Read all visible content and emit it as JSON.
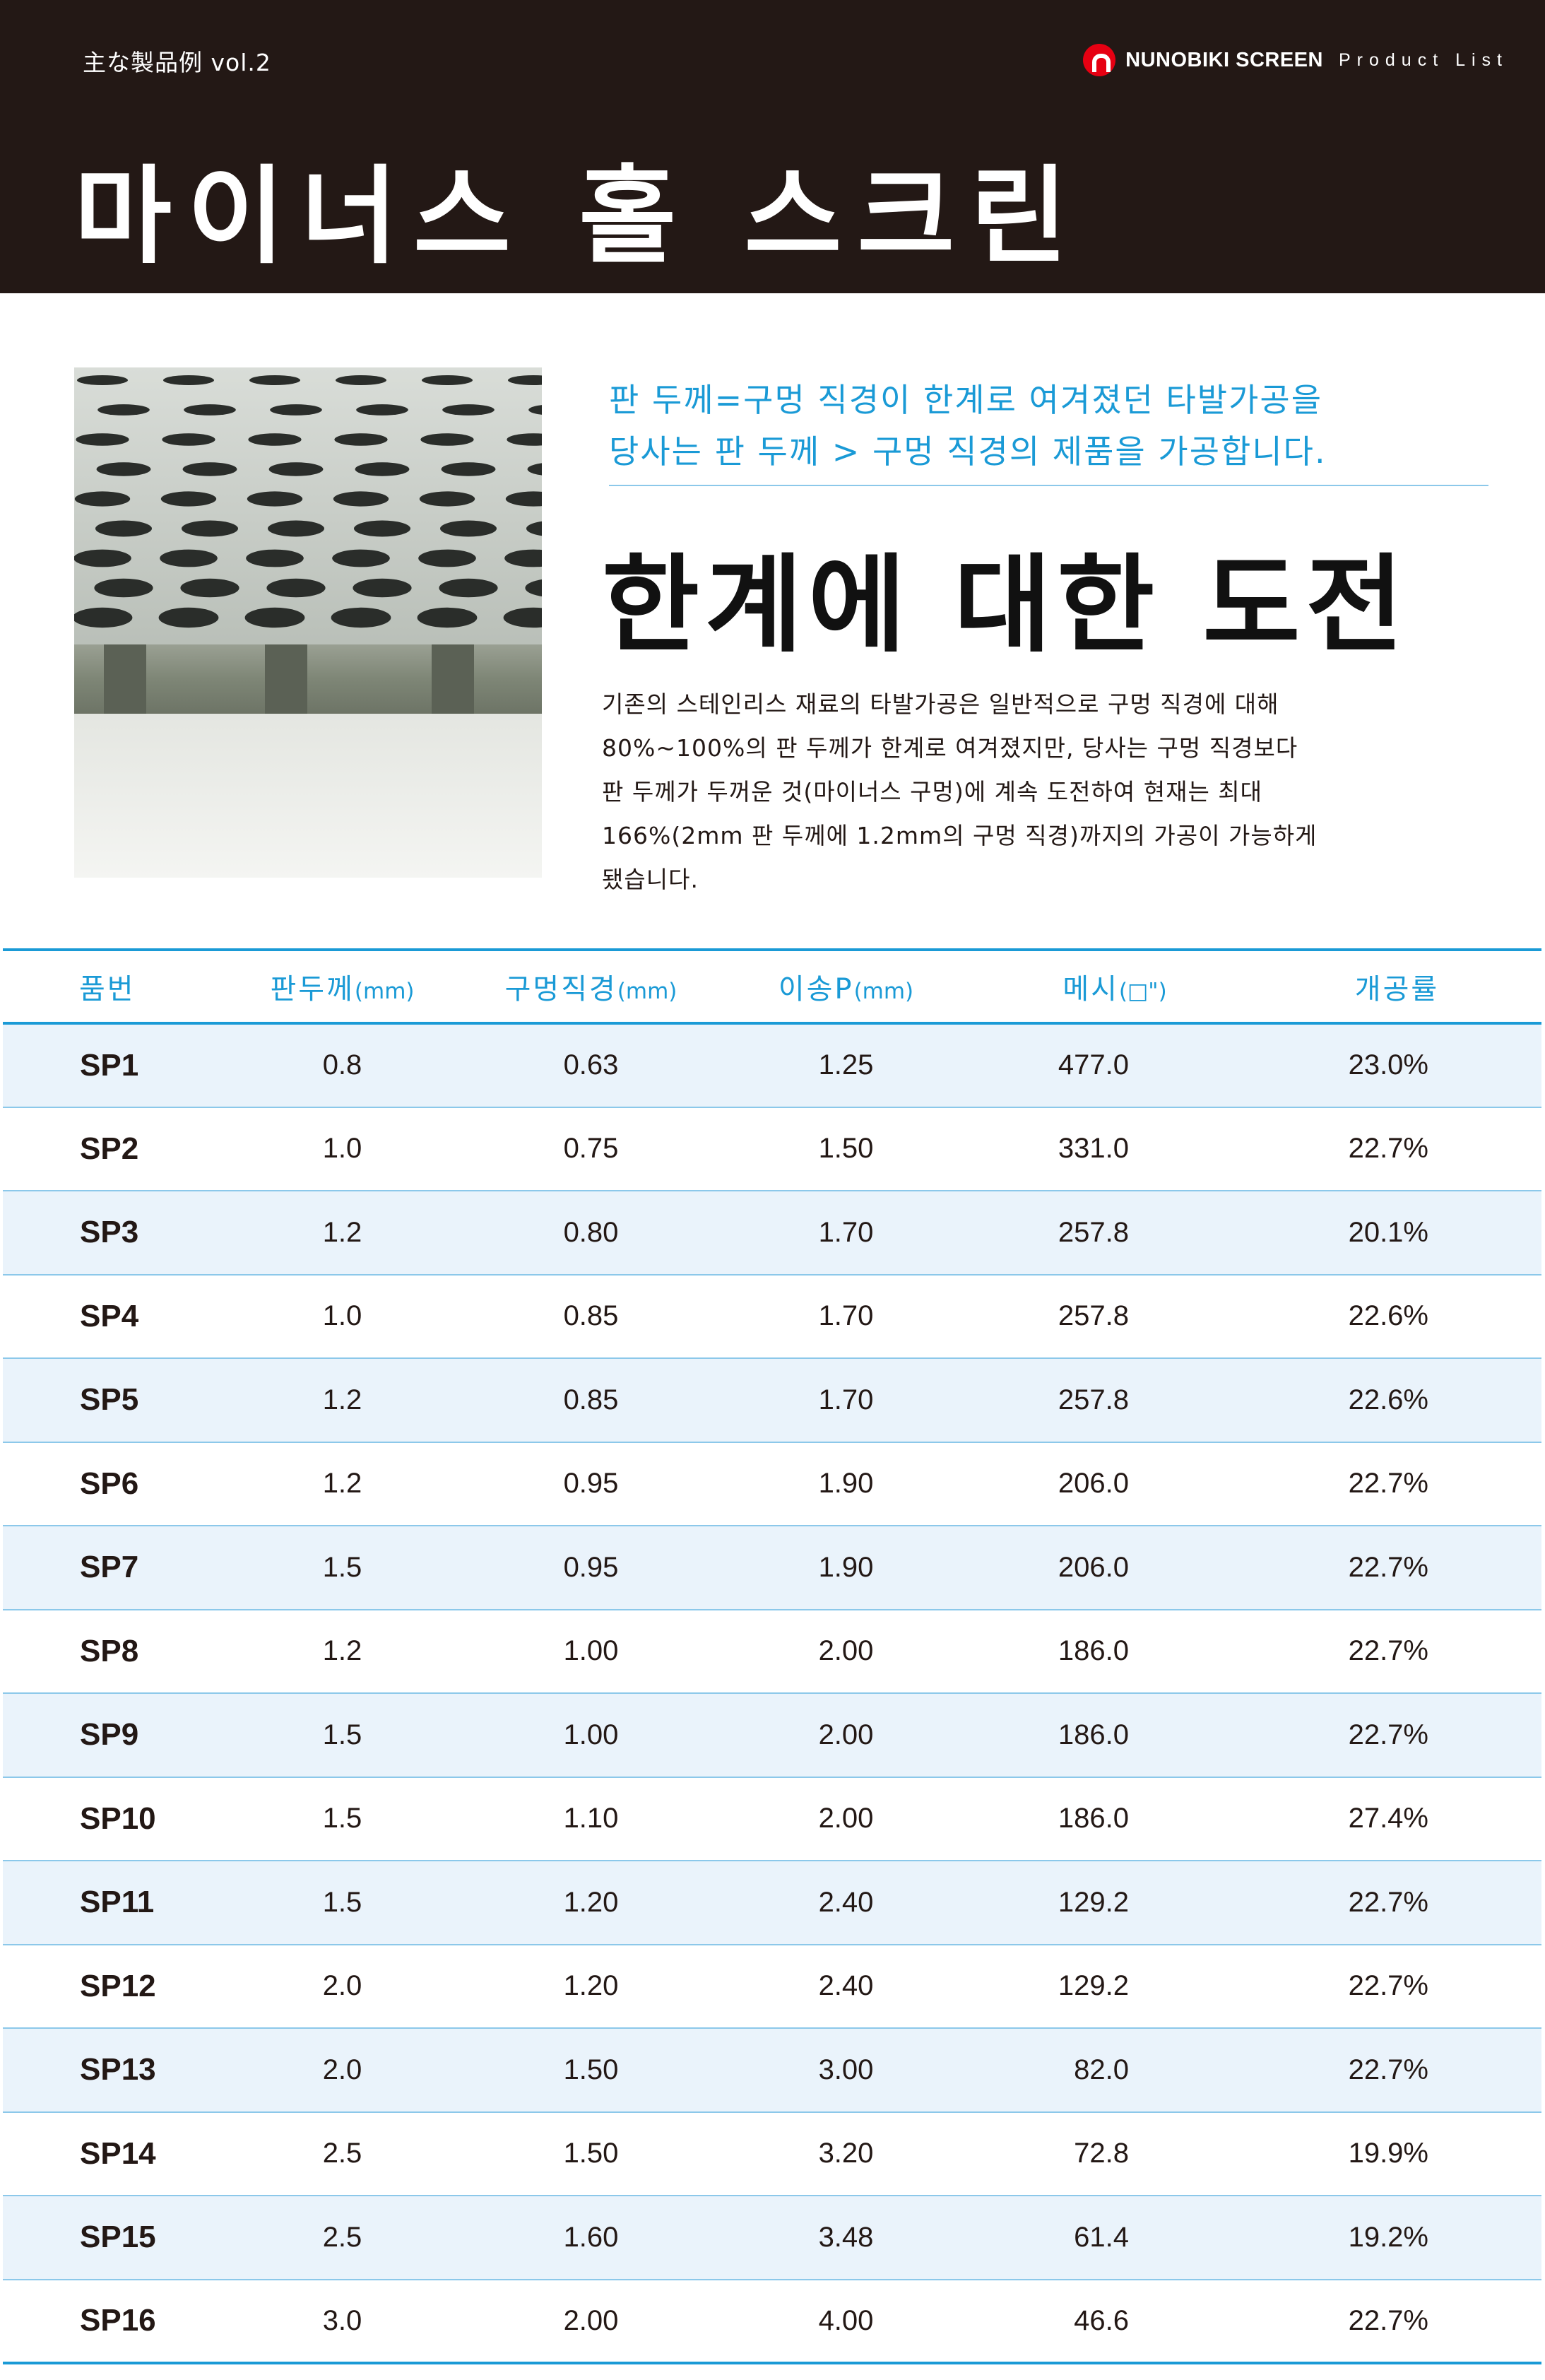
{
  "header": {
    "series": "主な製品例 vol.2",
    "brand_name": "NUNOBIKI SCREEN",
    "brand_tag": "Product List",
    "title": "마이너스 홀 스크린"
  },
  "intro": {
    "lead_lines": [
      "판 두께=구멍 직경이 한계로 여겨졌던 타발가공을",
      "당사는 판 두께 > 구멍 직경의 제품을 가공합니다."
    ],
    "headline": "한계에 대한 도전",
    "body_lines": [
      "기존의 스테인리스 재료의 타발가공은 일반적으로 구멍 직경에 대해",
      "80%~100%의 판 두께가 한계로 여겨졌지만, 당사는 구멍 직경보다",
      "판 두께가 두꺼운 것(마이너스 구멍)에 계속 도전하여 현재는 최대",
      "166%(2mm 판 두께에 1.2mm의 구멍 직경)까지의 가공이 가능하게",
      "됐습니다."
    ]
  },
  "table": {
    "columns": [
      {
        "label": "품번",
        "unit": ""
      },
      {
        "label": "판두께",
        "unit": "(mm)"
      },
      {
        "label": "구멍직경",
        "unit": "(mm)"
      },
      {
        "label": "이송P",
        "unit": "(mm)"
      },
      {
        "label": "메시",
        "unit": "(□\")"
      },
      {
        "label": "개공률",
        "unit": ""
      }
    ],
    "rows": [
      [
        "SP1",
        "0.8",
        "0.63",
        "1.25",
        "477.0",
        "23.0%"
      ],
      [
        "SP2",
        "1.0",
        "0.75",
        "1.50",
        "331.0",
        "22.7%"
      ],
      [
        "SP3",
        "1.2",
        "0.80",
        "1.70",
        "257.8",
        "20.1%"
      ],
      [
        "SP4",
        "1.0",
        "0.85",
        "1.70",
        "257.8",
        "22.6%"
      ],
      [
        "SP5",
        "1.2",
        "0.85",
        "1.70",
        "257.8",
        "22.6%"
      ],
      [
        "SP6",
        "1.2",
        "0.95",
        "1.90",
        "206.0",
        "22.7%"
      ],
      [
        "SP7",
        "1.5",
        "0.95",
        "1.90",
        "206.0",
        "22.7%"
      ],
      [
        "SP8",
        "1.2",
        "1.00",
        "2.00",
        "186.0",
        "22.7%"
      ],
      [
        "SP9",
        "1.5",
        "1.00",
        "2.00",
        "186.0",
        "22.7%"
      ],
      [
        "SP10",
        "1.5",
        "1.10",
        "2.00",
        "186.0",
        "27.4%"
      ],
      [
        "SP11",
        "1.5",
        "1.20",
        "2.40",
        "129.2",
        "22.7%"
      ],
      [
        "SP12",
        "2.0",
        "1.20",
        "2.40",
        "129.2",
        "22.7%"
      ],
      [
        "SP13",
        "2.0",
        "1.50",
        "3.00",
        "82.0",
        "22.7%"
      ],
      [
        "SP14",
        "2.5",
        "1.50",
        "3.20",
        "72.8",
        "19.9%"
      ],
      [
        "SP15",
        "2.5",
        "1.60",
        "3.48",
        "61.4",
        "19.2%"
      ],
      [
        "SP16",
        "3.0",
        "2.00",
        "4.00",
        "46.6",
        "22.7%"
      ]
    ]
  },
  "colors": {
    "header_bg": "#231815",
    "accent_blue": "#1a9ad6",
    "row_tint": "#eaf3fb",
    "rule_blue": "#8cc8ea",
    "logo_red": "#e60012"
  },
  "icons": {
    "brand_logo": "nunobiki-logo-icon"
  }
}
